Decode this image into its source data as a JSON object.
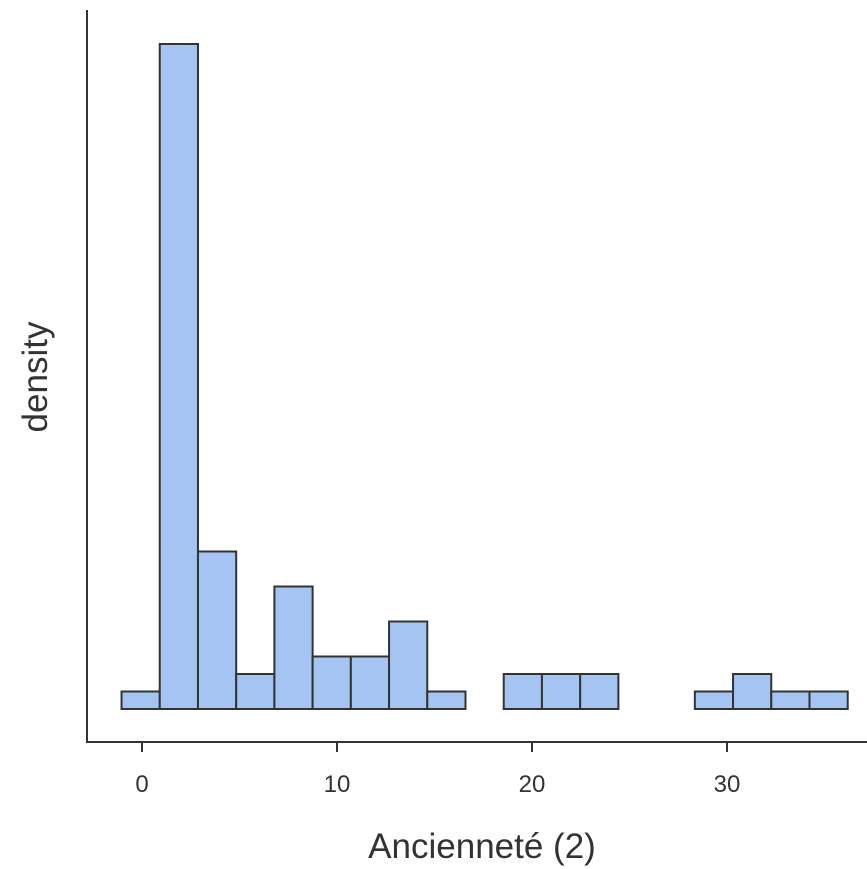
{
  "chart_data": {
    "type": "bar",
    "subtype": "histogram",
    "title": "",
    "xlabel": "Ancienneté (2)",
    "ylabel": "density",
    "x_ticks": [
      0,
      10,
      20,
      30
    ],
    "x_range": [
      -3,
      37
    ],
    "y_ticks_shown": false,
    "grid": false,
    "legend": "none",
    "bar_color": "#a4c4f2",
    "edge_color": "#333333",
    "bin_width": 1.96,
    "bin_start": -1.05,
    "counts": [
      1,
      38,
      9,
      2,
      7,
      3,
      3,
      5,
      1,
      0,
      2,
      2,
      2,
      0,
      0,
      1,
      2,
      1,
      1
    ]
  }
}
